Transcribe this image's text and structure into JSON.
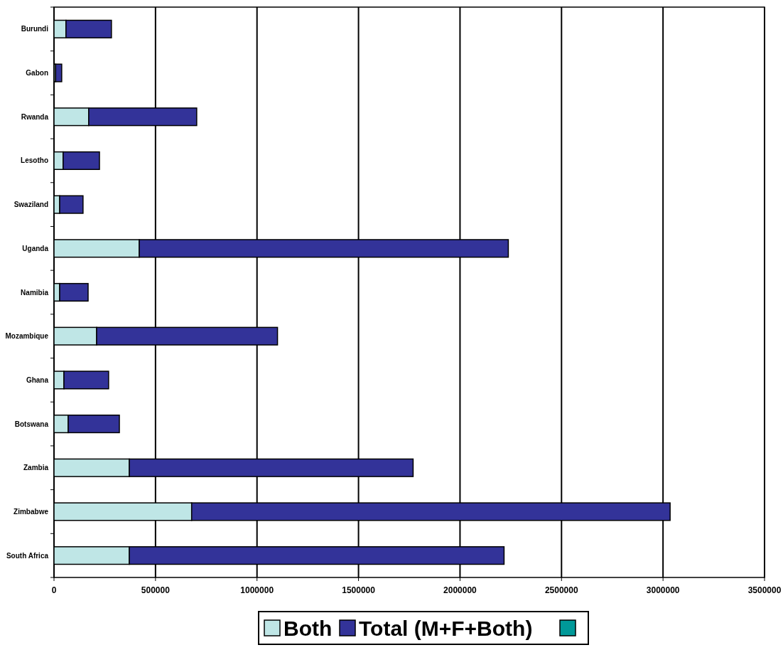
{
  "chart_data": {
    "type": "bar",
    "orientation": "horizontal",
    "stacked": true,
    "categories": [
      "Burundi",
      "Gabon",
      "Rwanda",
      "Lesotho",
      "Swaziland",
      "Uganda",
      "Namibia",
      "Mozambique",
      "Ghana",
      "Botswana",
      "Zambia",
      "Zimbabwe",
      "South Africa"
    ],
    "series": [
      {
        "name": "Both",
        "color": "#bfe6e6",
        "values": [
          59000,
          8000,
          171000,
          45000,
          28000,
          420000,
          28000,
          210000,
          49000,
          70000,
          371000,
          678000,
          371000
        ]
      },
      {
        "name": "Total (M+F+Both)",
        "color": "#333399",
        "values": [
          224000,
          30000,
          532000,
          179000,
          115000,
          1818000,
          140000,
          891000,
          220000,
          252000,
          1398000,
          2357000,
          1846000
        ]
      },
      {
        "color": "#009999",
        "values": [
          null,
          null,
          null,
          null,
          null,
          null,
          null,
          null,
          null,
          null,
          null,
          null,
          null
        ]
      }
    ],
    "xlim": [
      0,
      3500000
    ],
    "xticks": [
      0,
      500000,
      1000000,
      1500000,
      2000000,
      2500000,
      3000000,
      3500000
    ],
    "grid": "x",
    "legend": "bottom"
  }
}
